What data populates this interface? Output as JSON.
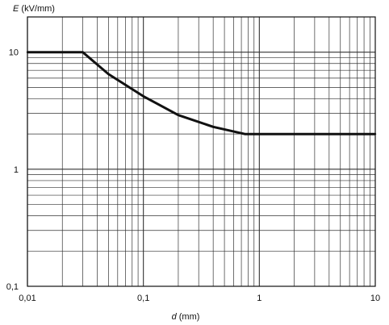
{
  "chart_data": {
    "type": "line",
    "x_scale": "log",
    "y_scale": "log",
    "xlim": [
      0.01,
      10
    ],
    "ylim": [
      0.1,
      20
    ],
    "grid": true,
    "x_ticks": [
      {
        "value": 0.01,
        "label": "0,01"
      },
      {
        "value": 0.1,
        "label": "0,1"
      },
      {
        "value": 1,
        "label": "1"
      },
      {
        "value": 10,
        "label": "10"
      }
    ],
    "y_ticks": [
      {
        "value": 0.1,
        "label": "0,1"
      },
      {
        "value": 1,
        "label": "1"
      },
      {
        "value": 10,
        "label": "10"
      }
    ],
    "xlabel": {
      "symbol": "d",
      "unit": "(mm)"
    },
    "ylabel": {
      "symbol": "E",
      "unit": "(kV/mm)"
    },
    "series": [
      {
        "color": "#111111",
        "points": [
          [
            0.01,
            10
          ],
          [
            0.03,
            10
          ],
          [
            0.05,
            6.5
          ],
          [
            0.1,
            4.2
          ],
          [
            0.2,
            2.9
          ],
          [
            0.4,
            2.3
          ],
          [
            0.75,
            2.0
          ],
          [
            10,
            2.0
          ]
        ]
      }
    ]
  }
}
